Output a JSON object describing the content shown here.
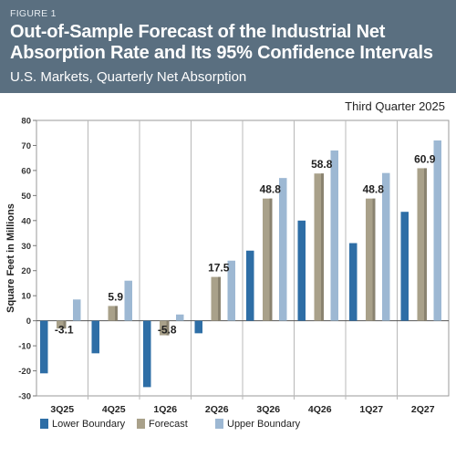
{
  "figure_label": "FIGURE 1",
  "title": "Out-of-Sample Forecast of the Industrial Net Absorption Rate and Its 95% Confidence Intervals",
  "subtitle": "U.S. Markets, Quarterly Net Absorption",
  "note": "Third Quarter 2025",
  "colors": {
    "header_bg": "#5a6f80",
    "lower": "#2e6ea6",
    "forecast": "#a9a18a",
    "upper": "#9db8d3",
    "grid": "#b8b8b8"
  },
  "chart_data": {
    "type": "bar",
    "title": "Out-of-Sample Forecast of the Industrial Net Absorption Rate and Its 95% Confidence Intervals",
    "subtitle": "U.S. Markets, Quarterly Net Absorption",
    "ylabel": "Square Feet in Millions",
    "xlabel": "",
    "ylim": [
      -30,
      80
    ],
    "yticks": [
      -30,
      -20,
      -10,
      0,
      10,
      20,
      30,
      40,
      50,
      60,
      70,
      80
    ],
    "categories": [
      "3Q25",
      "4Q25",
      "1Q26",
      "2Q26",
      "3Q26",
      "4Q26",
      "1Q27",
      "2Q27"
    ],
    "series": [
      {
        "name": "Lower Boundary",
        "values": [
          -21,
          -13,
          -26.5,
          -5,
          28,
          40,
          31,
          43.5
        ]
      },
      {
        "name": "Forecast",
        "values": [
          -3.1,
          5.9,
          -5.8,
          17.5,
          48.8,
          58.8,
          48.8,
          60.9
        ]
      },
      {
        "name": "Upper Boundary",
        "values": [
          8.5,
          16,
          2.5,
          24,
          57,
          68,
          59,
          72
        ]
      }
    ],
    "data_labels": [
      "-3.1",
      "5.9",
      "-5.8",
      "17.5",
      "48.8",
      "58.8",
      "48.8",
      "60.9"
    ],
    "legend_position": "bottom-left",
    "grid": "vertical separators"
  }
}
